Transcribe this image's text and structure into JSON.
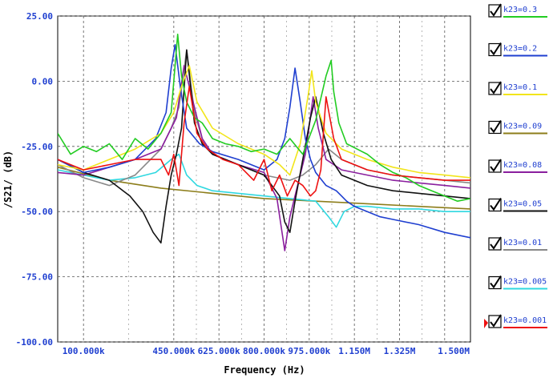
{
  "chart_data": {
    "type": "line",
    "xlabel": "Frequency (Hz)",
    "ylabel": "/S21/ (dB)",
    "xlim": [
      0,
      1600000
    ],
    "ylim": [
      -100,
      25
    ],
    "x_tick_values": [
      100000,
      450000,
      625000,
      800000,
      975000,
      1150000,
      1325000,
      1500000
    ],
    "x_tick_labels": [
      "100.000k",
      "450.000k",
      "625.000k",
      "800.000k",
      "975.000k",
      "1.150M",
      "1.325M",
      "1.500M"
    ],
    "y_tick_values": [
      25,
      0,
      -25,
      -50,
      -75,
      -100
    ],
    "y_tick_labels": [
      "25.00",
      "0.00",
      "-25.00",
      "-50.00",
      "-75.00",
      "-100.00"
    ],
    "grid": true,
    "legend_position": "right",
    "series": [
      {
        "name": "k23=0.3",
        "color": "#22cc22",
        "checked": true,
        "x": [
          0,
          50000,
          100000,
          150000,
          200000,
          250000,
          300000,
          350000,
          400000,
          440000,
          465000,
          480000,
          500000,
          530000,
          560000,
          600000,
          650000,
          700000,
          750000,
          800000,
          850000,
          900000,
          950000,
          1000000,
          1040000,
          1060000,
          1070000,
          1090000,
          1120000,
          1160000,
          1200000,
          1250000,
          1300000,
          1350000,
          1400000,
          1450000,
          1500000,
          1550000,
          1600000
        ],
        "y": [
          -20,
          -28,
          -25,
          -27,
          -24,
          -30,
          -22,
          -26,
          -20,
          -12,
          18,
          2,
          -8,
          -14,
          -16,
          -22,
          -24,
          -25,
          -27,
          -26,
          -28,
          -22,
          -28,
          -15,
          2,
          8,
          -4,
          -16,
          -24,
          -26,
          -28,
          -32,
          -35,
          -37,
          -40,
          -42,
          -44,
          -46,
          -45
        ]
      },
      {
        "name": "k23=0.2",
        "color": "#1f3fd0",
        "checked": true,
        "x": [
          0,
          100000,
          200000,
          300000,
          380000,
          420000,
          440000,
          455000,
          475000,
          500000,
          550000,
          600000,
          700000,
          800000,
          850000,
          880000,
          900000,
          920000,
          940000,
          960000,
          980000,
          1000000,
          1040000,
          1080000,
          1100000,
          1120000,
          1150000,
          1200000,
          1250000,
          1300000,
          1400000,
          1500000,
          1600000
        ],
        "y": [
          -30,
          -35,
          -33,
          -30,
          -22,
          -12,
          5,
          14,
          -2,
          -18,
          -24,
          -27,
          -30,
          -34,
          -30,
          -22,
          -10,
          5,
          -8,
          -22,
          -30,
          -35,
          -40,
          -42,
          -44,
          -46,
          -48,
          -50,
          -52,
          -53,
          -55,
          -58,
          -60
        ]
      },
      {
        "name": "k23=0.1",
        "color": "#f2e51a",
        "checked": true,
        "x": [
          0,
          100000,
          200000,
          300000,
          400000,
          450000,
          480000,
          510000,
          540000,
          600000,
          700000,
          800000,
          860000,
          900000,
          940000,
          970000,
          985000,
          1000000,
          1040000,
          1100000,
          1200000,
          1300000,
          1400000,
          1500000,
          1600000
        ],
        "y": [
          -32,
          -34,
          -30,
          -26,
          -20,
          -12,
          -2,
          6,
          -8,
          -18,
          -24,
          -28,
          -32,
          -36,
          -24,
          -6,
          4,
          -8,
          -20,
          -26,
          -30,
          -33,
          -35,
          -36,
          -37
        ]
      },
      {
        "name": "k23=0.09",
        "color": "#8c7d1a",
        "checked": true,
        "x": [
          0,
          200000,
          400000,
          600000,
          800000,
          1000000,
          1200000,
          1400000,
          1600000
        ],
        "y": [
          -33,
          -38,
          -41,
          -43,
          -45,
          -46,
          -47,
          -48,
          -49
        ]
      },
      {
        "name": "k23=0.08",
        "color": "#8a1f9e",
        "checked": true,
        "x": [
          0,
          100000,
          200000,
          300000,
          400000,
          460000,
          490000,
          520000,
          560000,
          600000,
          700000,
          800000,
          850000,
          880000,
          900000,
          930000,
          960000,
          990000,
          1010000,
          1040000,
          1100000,
          1200000,
          1300000,
          1400000,
          1500000,
          1600000
        ],
        "y": [
          -35,
          -36,
          -33,
          -30,
          -26,
          -14,
          6,
          -6,
          -22,
          -28,
          -32,
          -35,
          -45,
          -65,
          -52,
          -40,
          -28,
          -6,
          -18,
          -30,
          -34,
          -36,
          -38,
          -39,
          -40,
          -41
        ]
      },
      {
        "name": "k23=0.05",
        "color": "#111111",
        "checked": true,
        "x": [
          0,
          100000,
          200000,
          280000,
          330000,
          370000,
          400000,
          420000,
          440000,
          460000,
          480000,
          500000,
          530000,
          560000,
          600000,
          700000,
          800000,
          860000,
          880000,
          900000,
          920000,
          950000,
          980000,
          1000000,
          1030000,
          1060000,
          1100000,
          1200000,
          1300000,
          1400000,
          1500000,
          1600000
        ],
        "y": [
          -30,
          -35,
          -38,
          -44,
          -50,
          -58,
          -62,
          -48,
          -36,
          -28,
          -18,
          12,
          -16,
          -24,
          -28,
          -32,
          -36,
          -44,
          -54,
          -58,
          -46,
          -30,
          -14,
          -6,
          -20,
          -30,
          -36,
          -40,
          -42,
          -43,
          -44,
          -45
        ]
      },
      {
        "name": "k23=0.01",
        "color": "#888888",
        "checked": true,
        "x": [
          0,
          100000,
          200000,
          300000,
          360000,
          400000,
          440000,
          470000,
          500000,
          530000,
          560000,
          600000,
          700000,
          800000,
          900000,
          950000,
          1000000,
          1050000,
          1100000,
          1200000,
          1300000,
          1400000,
          1500000,
          1600000
        ],
        "y": [
          -32,
          -37,
          -40,
          -36,
          -30,
          -26,
          -18,
          -10,
          12,
          -12,
          -22,
          -28,
          -32,
          -36,
          -38,
          -36,
          -32,
          -26,
          -30,
          -34,
          -36,
          -37,
          -38,
          -39
        ]
      },
      {
        "name": "k23=0.005",
        "color": "#2fd8e0",
        "checked": true,
        "x": [
          0,
          100000,
          200000,
          300000,
          380000,
          440000,
          470000,
          500000,
          540000,
          600000,
          700000,
          800000,
          900000,
          1000000,
          1050000,
          1080000,
          1110000,
          1150000,
          1200000,
          1300000,
          1400000,
          1500000,
          1600000
        ],
        "y": [
          -34,
          -36,
          -38,
          -37,
          -35,
          -30,
          -28,
          -36,
          -40,
          -42,
          -43,
          -44,
          -45,
          -46,
          -52,
          -56,
          -50,
          -48,
          -48,
          -49,
          -49,
          -50,
          -50
        ]
      },
      {
        "name": "k23=0.001",
        "color": "#ee1111",
        "checked": true,
        "x": [
          0,
          100000,
          200000,
          300000,
          400000,
          430000,
          450000,
          470000,
          490000,
          510000,
          540000,
          580000,
          640000,
          700000,
          760000,
          800000,
          830000,
          860000,
          890000,
          920000,
          950000,
          980000,
          1000000,
          1020000,
          1040000,
          1070000,
          1100000,
          1200000,
          1300000,
          1400000,
          1500000,
          1600000
        ],
        "y": [
          -30,
          -34,
          -32,
          -30,
          -30,
          -36,
          -28,
          -40,
          -16,
          -2,
          -20,
          -26,
          -30,
          -32,
          -38,
          -30,
          -42,
          -36,
          -44,
          -38,
          -40,
          -44,
          -42,
          -34,
          -6,
          -22,
          -30,
          -34,
          -36,
          -37,
          -38,
          -38
        ]
      }
    ]
  }
}
